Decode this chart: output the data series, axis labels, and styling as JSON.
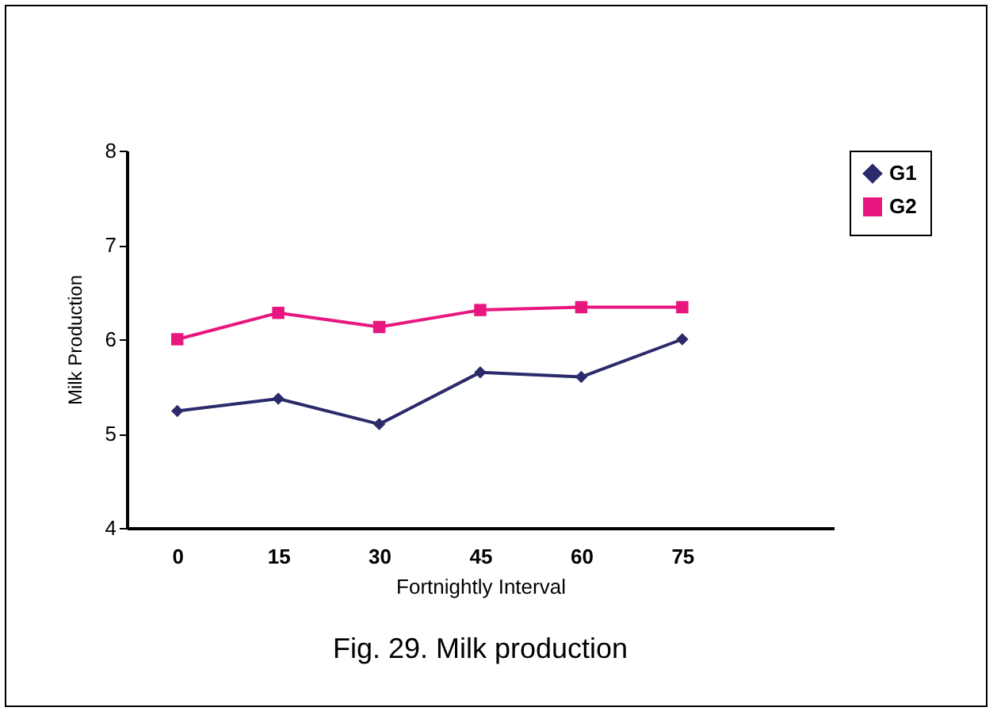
{
  "chart_data": {
    "type": "line",
    "xlabel": "Fortnightly Interval",
    "ylabel": "Milk Production",
    "x": [
      0,
      15,
      30,
      45,
      60,
      75
    ],
    "xlim": [
      -7.5,
      97.5
    ],
    "xticks": [
      0,
      15,
      30,
      45,
      60,
      75
    ],
    "ylim": [
      4,
      8
    ],
    "yticks": [
      4,
      5,
      6,
      7,
      8
    ],
    "grid": false,
    "legend": "right",
    "annotations": [
      "Fig. 29.  Milk production"
    ],
    "series": [
      {
        "name": "G1",
        "color": "#2b2a6b",
        "marker": "diamond",
        "values": [
          5.24,
          5.37,
          5.1,
          5.65,
          5.6,
          6.0
        ]
      },
      {
        "name": "G2",
        "color": "#e8177f",
        "marker": "square",
        "values": [
          6.0,
          6.28,
          6.13,
          6.31,
          6.34,
          6.34
        ]
      }
    ]
  }
}
